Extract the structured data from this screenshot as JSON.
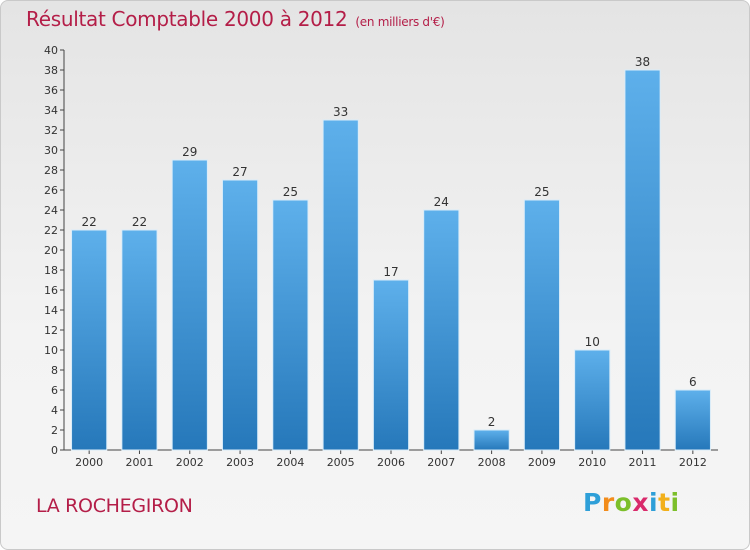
{
  "title": "Résultat Comptable 2000 à 2012",
  "unit_note": "(en milliers d'€)",
  "commune": "LA ROCHEGIRON",
  "logo": {
    "letters": [
      "P",
      "r",
      "o",
      "x",
      "i",
      "t",
      "i"
    ],
    "colors": [
      "#2e9fd8",
      "#f28c1b",
      "#7cbf2a",
      "#d92a6b",
      "#2e9fd8",
      "#f2b01b",
      "#7cbf2a"
    ]
  },
  "colors": {
    "bar_top": "#5eb0eb",
    "bar_bottom": "#2678ba",
    "title": "#b41e48"
  },
  "chart_data": {
    "type": "bar",
    "categories": [
      "2000",
      "2001",
      "2002",
      "2003",
      "2004",
      "2005",
      "2006",
      "2007",
      "2008",
      "2009",
      "2010",
      "2011",
      "2012"
    ],
    "values": [
      22,
      22,
      29,
      27,
      25,
      33,
      17,
      24,
      2,
      25,
      10,
      38,
      6
    ],
    "ylim": [
      0,
      40
    ],
    "yticks": [
      0,
      2,
      4,
      6,
      8,
      10,
      12,
      14,
      16,
      18,
      20,
      22,
      24,
      26,
      28,
      30,
      32,
      34,
      36,
      38,
      40
    ],
    "grid": false,
    "data_labels": true
  }
}
